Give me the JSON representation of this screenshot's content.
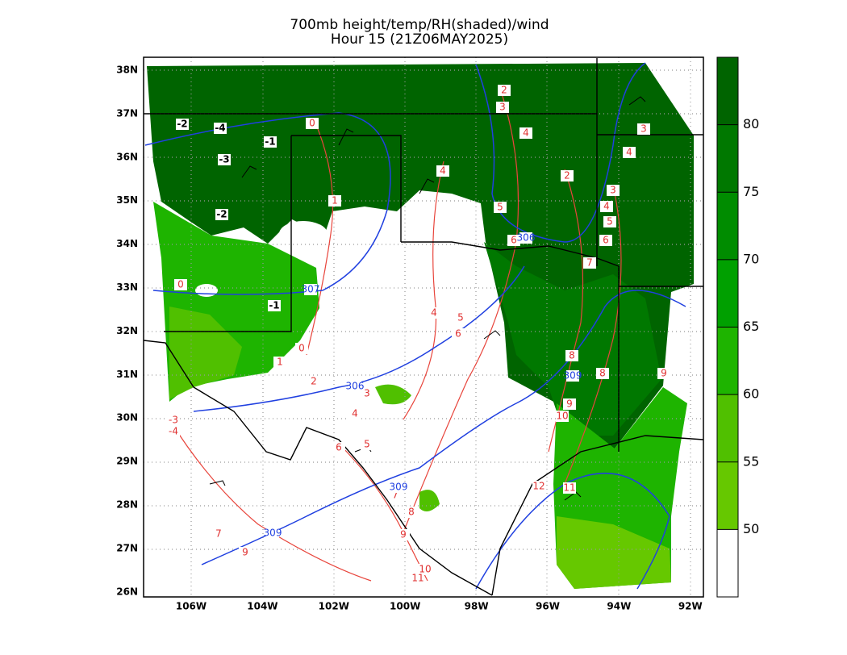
{
  "title": "700mb height/temp/RH(shaded)/wind",
  "subtitle": "Hour 15 (21Z06MAY2025)",
  "longitude_labels": [
    "106W",
    "104W",
    "102W",
    "100W",
    "98W",
    "96W",
    "94W",
    "92W"
  ],
  "latitude_labels": [
    "38N",
    "37N",
    "36N",
    "35N",
    "34N",
    "33N",
    "32N",
    "31N",
    "30N",
    "29N",
    "28N",
    "27N",
    "26N"
  ],
  "colorbar": {
    "range": [
      45,
      85
    ],
    "ticks": [
      50,
      55,
      60,
      65,
      70,
      75,
      80
    ],
    "colors": [
      "#ffffff",
      "#66c800",
      "#50c000",
      "#1eb400",
      "#00a000",
      "#008c00",
      "#007800",
      "#006400"
    ]
  },
  "boxed_temperature_labels": [
    "-2",
    "-4",
    "-1",
    "-3",
    "-2",
    "-1"
  ],
  "temperature_labels": [
    "0",
    "2",
    "3",
    "4",
    "4",
    "2",
    "3",
    "4",
    "5",
    "6",
    "1",
    "5",
    "6",
    "7",
    "0",
    "0",
    "1",
    "4",
    "5",
    "6",
    "2",
    "3",
    "4",
    "8",
    "8",
    "9",
    "9",
    "10",
    "6",
    "5",
    "-3",
    "-4",
    "3",
    "4",
    "7",
    "8",
    "9",
    "7",
    "9",
    "10",
    "11",
    "12",
    "11"
  ],
  "height_labels": [
    "306",
    "306",
    "309",
    "309",
    "309",
    "307"
  ]
}
